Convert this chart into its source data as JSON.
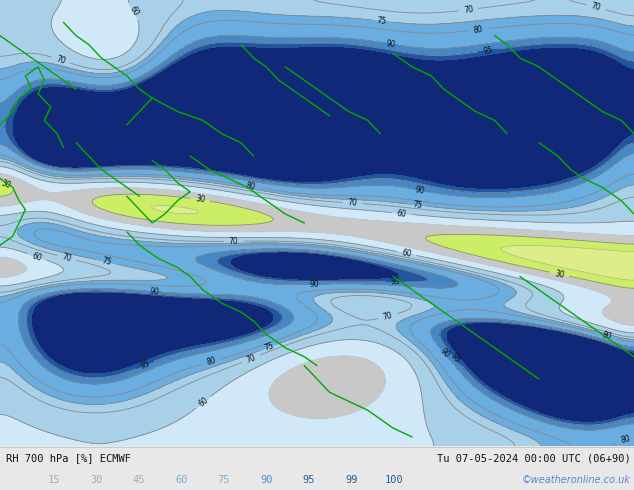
{
  "title_left": "RH 700 hPa [%] ECMWF",
  "title_right": "Tu 07-05-2024 00:00 UTC (06+90)",
  "credit": "©weatheronline.co.uk",
  "legend_values": [
    "15",
    "30",
    "45",
    "60",
    "75",
    "90",
    "95",
    "99",
    "100"
  ],
  "legend_text_colors": [
    "#aaaaaa",
    "#aaaaaa",
    "#aaaaaa",
    "#7ab0d8",
    "#7ab0d8",
    "#4d8fc8",
    "#2060a0",
    "#2060a0",
    "#2060a0"
  ],
  "fill_levels": [
    0,
    15,
    30,
    45,
    60,
    75,
    90,
    95,
    99,
    101
  ],
  "fill_colors": [
    "#f0f0f0",
    "#d8d8d8",
    "#c8c8c8",
    "#d0e8f8",
    "#a8d0e8",
    "#6aade0",
    "#4488c8",
    "#2255a0",
    "#112878"
  ],
  "lime_color": "#ccee88",
  "gray_color": "#b8b8b8",
  "contour_line_color": "#888888",
  "border_color": "#00aa00",
  "bottom_bar_color": "#f5f5f5",
  "bottom_bar_height": 0.09,
  "figsize": [
    6.34,
    4.9
  ],
  "dpi": 100
}
